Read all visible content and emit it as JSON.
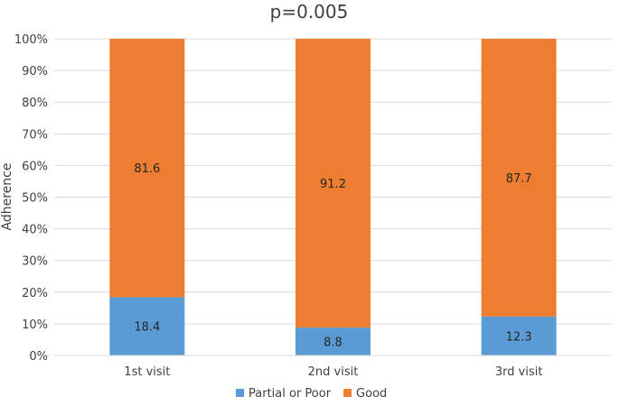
{
  "chart_data": {
    "type": "bar",
    "stacked": true,
    "percent_stacked": true,
    "title": "p=0.005",
    "xlabel": "",
    "ylabel": "Adherence",
    "ylim": [
      0,
      100
    ],
    "yticks": [
      "0%",
      "10%",
      "20%",
      "30%",
      "40%",
      "50%",
      "60%",
      "70%",
      "80%",
      "90%",
      "100%"
    ],
    "categories": [
      "1st visit",
      "2nd visit",
      "3rd visit"
    ],
    "series": [
      {
        "name": "Partial or Poor",
        "color": "#5b9bd5",
        "values": [
          18.4,
          8.8,
          12.3
        ]
      },
      {
        "name": "Good",
        "color": "#ed7d31",
        "values": [
          81.6,
          91.2,
          87.7
        ]
      }
    ],
    "legend_position": "bottom",
    "grid": true
  }
}
